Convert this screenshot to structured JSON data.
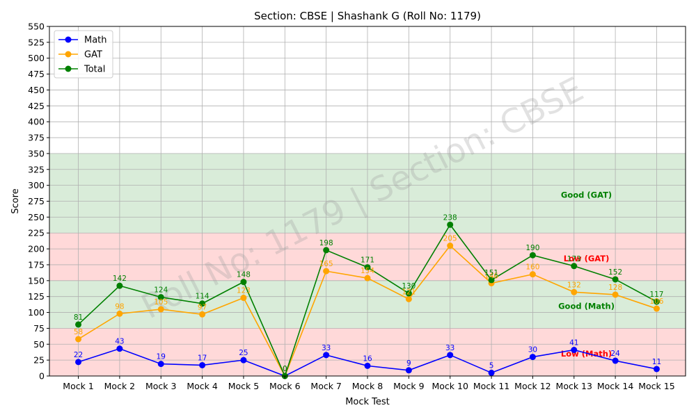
{
  "chart_data": {
    "type": "line",
    "title": "Section: CBSE | Shashank G (Roll No: 1179)",
    "xlabel": "Mock Test",
    "ylabel": "Score",
    "ylim": [
      0,
      550
    ],
    "y_ticks": [
      0,
      25,
      50,
      75,
      100,
      125,
      150,
      175,
      200,
      225,
      250,
      275,
      300,
      325,
      350,
      375,
      400,
      425,
      450,
      475,
      500,
      525,
      550
    ],
    "grid": true,
    "legend_position": "top-left",
    "categories": [
      "Mock 1",
      "Mock 2",
      "Mock 3",
      "Mock 4",
      "Mock 5",
      "Mock 6",
      "Mock 7",
      "Mock 8",
      "Mock 9",
      "Mock 10",
      "Mock 11",
      "Mock 12",
      "Mock 13",
      "Mock 14",
      "Mock 15"
    ],
    "series": [
      {
        "name": "Math",
        "color": "#0000ff",
        "values": [
          22,
          43,
          19,
          17,
          25,
          0,
          33,
          16,
          9,
          33,
          5,
          30,
          41,
          24,
          11
        ]
      },
      {
        "name": "GAT",
        "color": "#ffa500",
        "values": [
          58,
          98,
          105,
          97,
          123,
          0,
          165,
          154,
          121,
          205,
          146,
          160,
          132,
          128,
          106
        ]
      },
      {
        "name": "Total",
        "color": "#008000",
        "values": [
          81,
          142,
          124,
          114,
          148,
          0,
          198,
          171,
          130,
          238,
          151,
          190,
          173,
          152,
          117
        ]
      }
    ],
    "bands": [
      {
        "from": 0,
        "to": 75,
        "color": "#ff0000"
      },
      {
        "from": 75,
        "to": 150,
        "color": "#008000"
      },
      {
        "from": 150,
        "to": 225,
        "color": "#ff0000"
      },
      {
        "from": 225,
        "to": 350,
        "color": "#008000"
      }
    ],
    "band_labels": [
      {
        "text": "Low (Math)",
        "x_index": 12.3,
        "y": 35,
        "color": "#ff0000"
      },
      {
        "text": "Good (Math)",
        "x_index": 12.3,
        "y": 110,
        "color": "#008000"
      },
      {
        "text": "Low (GAT)",
        "x_index": 12.3,
        "y": 185,
        "color": "#ff0000"
      },
      {
        "text": "Good (GAT)",
        "x_index": 12.3,
        "y": 285,
        "color": "#008000"
      }
    ],
    "watermark": "Roll No: 1179 | Section: CBSE"
  }
}
